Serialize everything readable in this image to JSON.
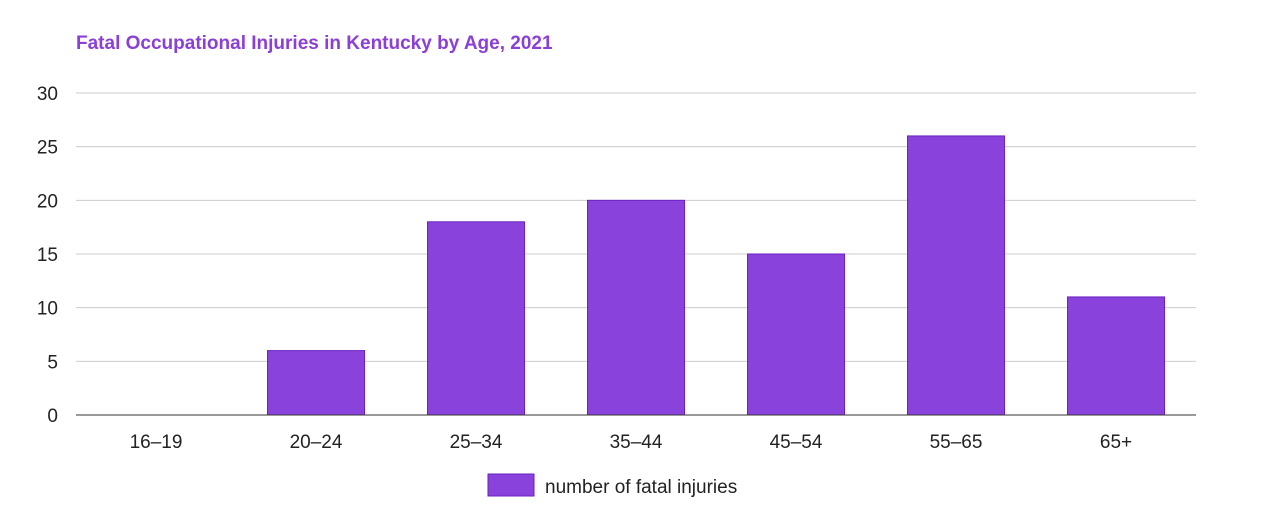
{
  "chart_data": {
    "type": "bar",
    "title": "Fatal Occupational Injuries in Kentucky by Age, 2021",
    "xlabel": "",
    "ylabel": "",
    "categories": [
      "16–19",
      "20–24",
      "25–34",
      "35–44",
      "45–54",
      "55–65",
      "65+"
    ],
    "series": [
      {
        "name": "number of fatal injuries",
        "values": [
          0,
          6,
          18,
          20,
          15,
          26,
          11
        ],
        "color": "#8a42dd",
        "stroke": "#6a22c0"
      }
    ],
    "ylim": [
      0,
      30
    ],
    "yticks": [
      0,
      5,
      10,
      15,
      20,
      25,
      30
    ],
    "grid": true,
    "legend": "bottom"
  }
}
